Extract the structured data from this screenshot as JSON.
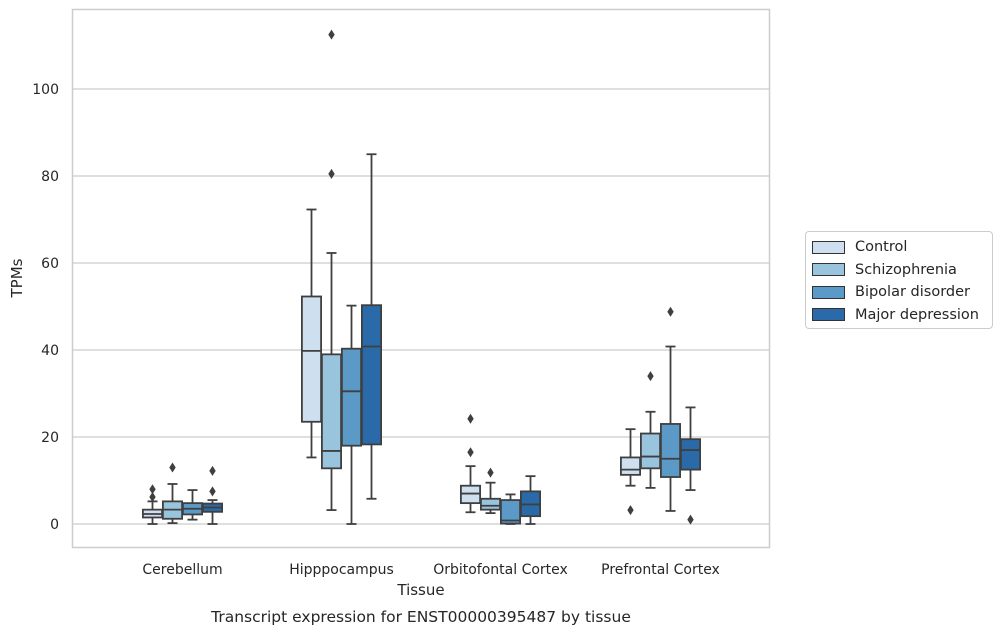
{
  "chart_data": {
    "type": "box",
    "caption": "Transcript expression for ENST00000395487 by tissue",
    "xlabel": "Tissue",
    "ylabel": "TPMs",
    "ylim": [
      -5.5,
      118
    ],
    "yticks": [
      0,
      20,
      40,
      60,
      80,
      100
    ],
    "grid": "horizontal",
    "legend_position": "right",
    "categories": [
      "Cerebellum",
      "Hipppocampus",
      "Orbitofontal Cortex",
      "Prefrontal Cortex"
    ],
    "series": [
      {
        "name": "Control",
        "color": "#cedff0",
        "boxes": [
          {
            "whisker_low": 0,
            "q1": 1.5,
            "median": 2.3,
            "q3": 3.3,
            "whisker_high": 5.2,
            "outliers": [
              6.2,
              8.0
            ]
          },
          {
            "whisker_low": 15.3,
            "q1": 23.5,
            "median": 39.8,
            "q3": 52.3,
            "whisker_high": 72.3,
            "outliers": []
          },
          {
            "whisker_low": 2.7,
            "q1": 4.8,
            "median": 7.0,
            "q3": 8.8,
            "whisker_high": 13.3,
            "outliers": [
              16.5,
              24.2
            ]
          },
          {
            "whisker_low": 8.8,
            "q1": 11.3,
            "median": 12.5,
            "q3": 15.3,
            "whisker_high": 21.8,
            "outliers": [
              3.2
            ]
          }
        ]
      },
      {
        "name": "Schizophrenia",
        "color": "#98c4de",
        "boxes": [
          {
            "whisker_low": 0.2,
            "q1": 1.2,
            "median": 3.3,
            "q3": 5.2,
            "whisker_high": 9.2,
            "outliers": [
              13.0
            ]
          },
          {
            "whisker_low": 3.2,
            "q1": 12.8,
            "median": 16.8,
            "q3": 39.0,
            "whisker_high": 62.3,
            "outliers": [
              80.5,
              112.5
            ]
          },
          {
            "whisker_low": 2.5,
            "q1": 3.3,
            "median": 4.2,
            "q3": 5.8,
            "whisker_high": 9.5,
            "outliers": [
              11.8
            ]
          },
          {
            "whisker_low": 8.3,
            "q1": 12.8,
            "median": 15.5,
            "q3": 20.8,
            "whisker_high": 25.8,
            "outliers": [
              34.0
            ]
          }
        ]
      },
      {
        "name": "Bipolar disorder",
        "color": "#5b9ac7",
        "boxes": [
          {
            "whisker_low": 1.0,
            "q1": 2.2,
            "median": 3.5,
            "q3": 4.8,
            "whisker_high": 7.8,
            "outliers": []
          },
          {
            "whisker_low": 0,
            "q1": 18.0,
            "median": 30.5,
            "q3": 40.3,
            "whisker_high": 50.2,
            "outliers": []
          },
          {
            "whisker_low": 0,
            "q1": 0.1,
            "median": 0.8,
            "q3": 5.5,
            "whisker_high": 6.8,
            "outliers": []
          },
          {
            "whisker_low": 3.0,
            "q1": 10.8,
            "median": 15.0,
            "q3": 23.0,
            "whisker_high": 40.8,
            "outliers": [
              48.8
            ]
          }
        ]
      },
      {
        "name": "Major depression",
        "color": "#2a6aa8",
        "boxes": [
          {
            "whisker_low": 0,
            "q1": 2.8,
            "median": 3.8,
            "q3": 4.7,
            "whisker_high": 5.5,
            "outliers": [
              7.5,
              12.2
            ]
          },
          {
            "whisker_low": 5.8,
            "q1": 18.3,
            "median": 40.8,
            "q3": 50.3,
            "whisker_high": 85.0,
            "outliers": []
          },
          {
            "whisker_low": 0,
            "q1": 1.8,
            "median": 4.5,
            "q3": 7.5,
            "whisker_high": 11.0,
            "outliers": []
          },
          {
            "whisker_low": 7.8,
            "q1": 12.5,
            "median": 17.0,
            "q3": 19.5,
            "whisker_high": 26.8,
            "outliers": [
              1.0
            ]
          }
        ]
      }
    ]
  }
}
